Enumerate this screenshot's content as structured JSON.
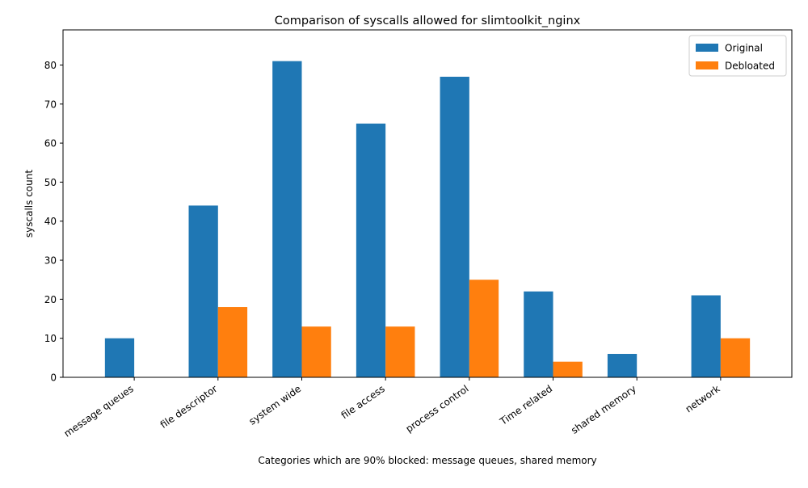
{
  "chart_data": {
    "type": "bar",
    "title": "Comparison of syscalls allowed for slimtoolkit_nginx",
    "xlabel": "Categories which are 90% blocked: message queues, shared memory",
    "ylabel": "syscalls count",
    "categories": [
      "message queues",
      "file descriptor",
      "system wide",
      "file access",
      "process control",
      "Time related",
      "shared memory",
      "network"
    ],
    "series": [
      {
        "name": "Original",
        "color": "#1f77b4",
        "values": [
          10,
          44,
          81,
          65,
          77,
          22,
          6,
          21
        ]
      },
      {
        "name": "Debloated",
        "color": "#ff7f0e",
        "values": [
          0,
          18,
          13,
          13,
          25,
          4,
          0,
          10
        ]
      }
    ],
    "ylim": [
      0,
      89
    ],
    "yticks": [
      0,
      10,
      20,
      30,
      40,
      50,
      60,
      70,
      80
    ],
    "legend_position": "top-right",
    "grid": false
  }
}
